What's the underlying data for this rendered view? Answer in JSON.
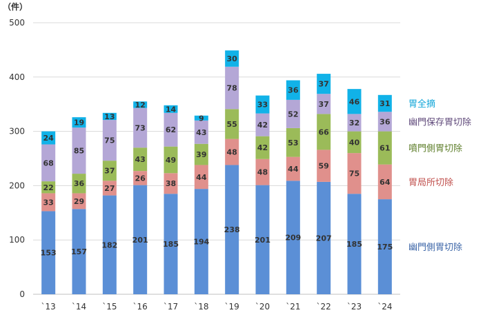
{
  "chart_data": {
    "type": "bar",
    "stacked": true,
    "unit_label": "（件）",
    "categories": [
      "`13",
      "`14",
      "`15",
      "`16",
      "`17",
      "`18",
      "`19",
      "`20",
      "`21",
      "`22",
      "`23",
      "`24"
    ],
    "ylim": [
      0,
      500
    ],
    "yticks": [
      0,
      100,
      200,
      300,
      400,
      500
    ],
    "grid": true,
    "legend_position": "right",
    "series": [
      {
        "name": "幽門側胃切除",
        "color": "#5b8fd6",
        "label_color": "#3d66a8",
        "values": [
          153,
          157,
          182,
          201,
          185,
          194,
          238,
          201,
          209,
          207,
          185,
          175
        ]
      },
      {
        "name": "胃局所切除",
        "color": "#e0908c",
        "label_color": "#c0504d",
        "values": [
          33,
          29,
          27,
          26,
          38,
          44,
          48,
          48,
          44,
          59,
          75,
          64
        ]
      },
      {
        "name": "噴門側胃切除",
        "color": "#9bbb59",
        "label_color": "#5f7f2c",
        "values": [
          22,
          36,
          37,
          43,
          49,
          39,
          55,
          42,
          53,
          66,
          40,
          61
        ]
      },
      {
        "name": "幽門保存胃切除",
        "color": "#b4a7d6",
        "label_color": "#604a7b",
        "values": [
          68,
          85,
          75,
          73,
          62,
          43,
          78,
          42,
          52,
          37,
          32,
          36
        ]
      },
      {
        "name": "胃全摘",
        "color": "#11b2e8",
        "label_color": "#0fa5d8",
        "values": [
          24,
          19,
          13,
          12,
          14,
          9,
          30,
          33,
          36,
          37,
          46,
          31
        ]
      }
    ]
  }
}
